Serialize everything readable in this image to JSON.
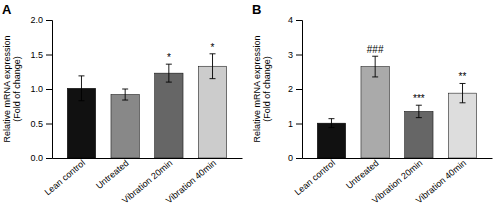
{
  "chart_data": [
    {
      "type": "bar",
      "title": "A",
      "categories": [
        "Lean control",
        "Untreated",
        "Vibration 20min",
        "Vibration 40min"
      ],
      "values": [
        1.01,
        0.92,
        1.23,
        1.33
      ],
      "errors": [
        0.18,
        0.08,
        0.13,
        0.18
      ],
      "colors": [
        "#111111",
        "#888888",
        "#666666",
        "#cccccc"
      ],
      "ylim": [
        0,
        2.0
      ],
      "yticks": [
        {
          "value": 0.0,
          "label": "0.0"
        },
        0.5,
        {
          "value": 1.0,
          "label": "1.0"
        },
        1.5,
        {
          "value": 2.0,
          "label": "2.0"
        }
      ],
      "ylabel": "Relative mRNA expression\n(Fold of change)",
      "annotations": [
        null,
        null,
        "*",
        "*"
      ]
    },
    {
      "type": "bar",
      "title": "B",
      "categories": [
        "Lean control",
        "Untreated",
        "Vibration 20min",
        "Vibration 40min"
      ],
      "values": [
        1.01,
        2.65,
        1.35,
        1.88
      ],
      "errors": [
        0.13,
        0.3,
        0.18,
        0.28
      ],
      "colors": [
        "#111111",
        "#aaaaaa",
        "#666666",
        "#dddddd"
      ],
      "ylim": [
        0,
        4.0
      ],
      "yticks": [
        0,
        1,
        2,
        3,
        4
      ],
      "ylabel": "Relative mRNA expression\n(Fold of change)",
      "annotations": [
        null,
        "###",
        "***",
        "**"
      ]
    }
  ]
}
